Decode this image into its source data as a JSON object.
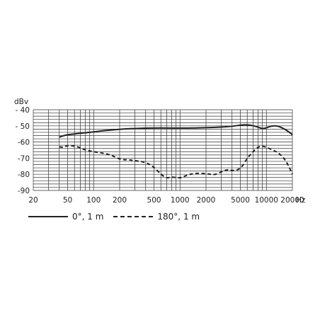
{
  "chart_data": {
    "type": "line",
    "title": "",
    "ylabel": "dBv",
    "xlabel": "Hz",
    "x_scale": "log",
    "xlim": [
      20,
      20000
    ],
    "ylim": [
      -90,
      -40
    ],
    "x_ticks": [
      {
        "value": 20,
        "label": "20"
      },
      {
        "value": 50,
        "label": "50"
      },
      {
        "value": 100,
        "label": "100"
      },
      {
        "value": 200,
        "label": "200"
      },
      {
        "value": 500,
        "label": "500"
      },
      {
        "value": 1000,
        "label": "1000"
      },
      {
        "value": 2000,
        "label": "2000"
      },
      {
        "value": 5000,
        "label": "5000"
      },
      {
        "value": 10000,
        "label": "10000"
      },
      {
        "value": 20000,
        "label": "20000"
      }
    ],
    "y_ticks": [
      {
        "value": -40,
        "label": "- 40"
      },
      {
        "value": -50,
        "label": "- 50"
      },
      {
        "value": -60,
        "label": "-60"
      },
      {
        "value": -70,
        "label": "-70"
      },
      {
        "value": -80,
        "label": "-80"
      },
      {
        "value": -90,
        "label": "-90"
      }
    ],
    "grid": true,
    "legend_position": "bottom-left",
    "series": [
      {
        "name": "0°, 1 m",
        "style": "solid",
        "color": "#222222",
        "points": [
          [
            40,
            -57
          ],
          [
            45,
            -56
          ],
          [
            50,
            -55.5
          ],
          [
            60,
            -55
          ],
          [
            70,
            -54.5
          ],
          [
            80,
            -54.3
          ],
          [
            100,
            -53.7
          ],
          [
            130,
            -53
          ],
          [
            160,
            -52.6
          ],
          [
            200,
            -52.1
          ],
          [
            250,
            -51.8
          ],
          [
            300,
            -51.6
          ],
          [
            400,
            -51.4
          ],
          [
            500,
            -51.3
          ],
          [
            700,
            -51.3
          ],
          [
            1000,
            -51.4
          ],
          [
            1500,
            -51.3
          ],
          [
            2000,
            -51.1
          ],
          [
            3000,
            -50.8
          ],
          [
            4000,
            -50.3
          ],
          [
            5000,
            -49.5
          ],
          [
            6000,
            -49.3
          ],
          [
            7000,
            -49.8
          ],
          [
            8000,
            -50.8
          ],
          [
            9000,
            -51.7
          ],
          [
            10000,
            -51.3
          ],
          [
            11000,
            -50.3
          ],
          [
            12500,
            -49.9
          ],
          [
            14000,
            -50.3
          ],
          [
            16000,
            -51.8
          ],
          [
            18000,
            -53.5
          ],
          [
            20000,
            -55.5
          ]
        ]
      },
      {
        "name": "180°, 1 m",
        "style": "dashed",
        "color": "#222222",
        "points": [
          [
            40,
            -63
          ],
          [
            45,
            -63.3
          ],
          [
            50,
            -62
          ],
          [
            60,
            -62.5
          ],
          [
            70,
            -63.5
          ],
          [
            80,
            -65
          ],
          [
            100,
            -66
          ],
          [
            130,
            -67
          ],
          [
            160,
            -68
          ],
          [
            200,
            -70.8
          ],
          [
            250,
            -71
          ],
          [
            300,
            -71.5
          ],
          [
            400,
            -72.5
          ],
          [
            500,
            -75.5
          ],
          [
            600,
            -80
          ],
          [
            700,
            -82.5
          ],
          [
            800,
            -81.5
          ],
          [
            1000,
            -82.5
          ],
          [
            1200,
            -80.5
          ],
          [
            1500,
            -79.3
          ],
          [
            2000,
            -79.5
          ],
          [
            2500,
            -80.5
          ],
          [
            3000,
            -78.5
          ],
          [
            3500,
            -77
          ],
          [
            4000,
            -77.8
          ],
          [
            5000,
            -77
          ],
          [
            6000,
            -70
          ],
          [
            7000,
            -66
          ],
          [
            8000,
            -63
          ],
          [
            9000,
            -62.5
          ],
          [
            10000,
            -63.3
          ],
          [
            12000,
            -65
          ],
          [
            14000,
            -67
          ],
          [
            16000,
            -70
          ],
          [
            18000,
            -74.5
          ],
          [
            20000,
            -80
          ]
        ]
      }
    ]
  }
}
